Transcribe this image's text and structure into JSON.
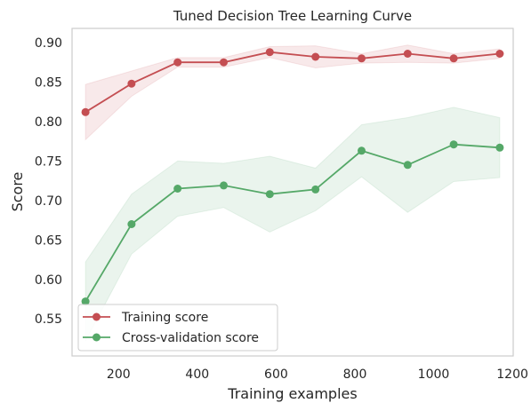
{
  "chart_data": {
    "type": "line",
    "title": "Tuned Decision Tree Learning Curve",
    "xlabel": "Training examples",
    "ylabel": "Score",
    "xlim": [
      82,
      1202
    ],
    "ylim": [
      0.503,
      0.918
    ],
    "xticks": [
      200,
      400,
      600,
      800,
      1000,
      1200
    ],
    "yticks": [
      0.55,
      0.6,
      0.65,
      0.7,
      0.75,
      0.8,
      0.85,
      0.9
    ],
    "ytick_labels": [
      "0.55",
      "0.60",
      "0.65",
      "0.70",
      "0.75",
      "0.80",
      "0.85",
      "0.90"
    ],
    "grid": false,
    "legend_position": "lower-left",
    "x": [
      116,
      233,
      350,
      467,
      584,
      700,
      817,
      934,
      1051,
      1168
    ],
    "series": [
      {
        "name": "Training score",
        "color": "#c44e52",
        "values": [
          0.812,
          0.848,
          0.875,
          0.875,
          0.888,
          0.882,
          0.88,
          0.886,
          0.88,
          0.886
        ],
        "band_upper": [
          0.847,
          0.864,
          0.881,
          0.881,
          0.895,
          0.896,
          0.886,
          0.897,
          0.886,
          0.892
        ],
        "band_lower": [
          0.777,
          0.832,
          0.869,
          0.869,
          0.881,
          0.868,
          0.874,
          0.875,
          0.874,
          0.88
        ]
      },
      {
        "name": "Cross-validation score",
        "color": "#55a868",
        "values": [
          0.572,
          0.67,
          0.715,
          0.719,
          0.708,
          0.714,
          0.763,
          0.745,
          0.771,
          0.767
        ],
        "band_upper": [
          0.622,
          0.708,
          0.75,
          0.747,
          0.756,
          0.741,
          0.796,
          0.805,
          0.818,
          0.805
        ],
        "band_lower": [
          0.522,
          0.632,
          0.68,
          0.691,
          0.66,
          0.687,
          0.73,
          0.685,
          0.724,
          0.729
        ]
      }
    ]
  }
}
